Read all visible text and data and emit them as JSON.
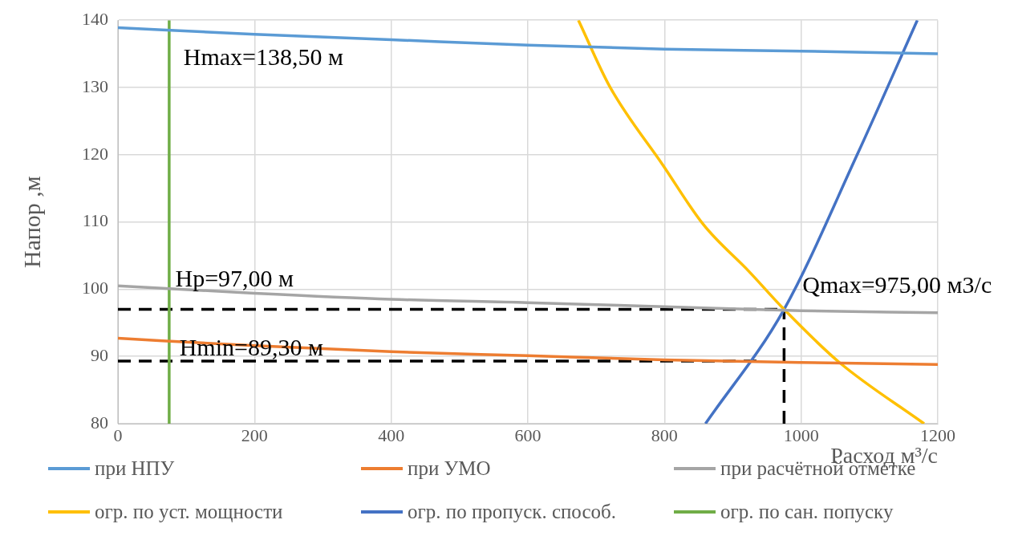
{
  "chart_data": {
    "type": "line",
    "xlabel": "Расход м³/с",
    "ylabel": "Напор ,м",
    "xlim": [
      0,
      1200
    ],
    "xticks": [
      0,
      200,
      400,
      600,
      800,
      1000,
      1200
    ],
    "ylim": [
      80,
      140
    ],
    "yticks": [
      80,
      90,
      100,
      110,
      120,
      130,
      140
    ],
    "grid": true,
    "legend": "bottom",
    "marker": "none",
    "series": [
      {
        "name": "при НПУ",
        "color": "#5b9bd5",
        "x": [
          0,
          200,
          400,
          600,
          800,
          1000,
          1200
        ],
        "values": [
          138.9,
          137.9,
          137.1,
          136.3,
          135.7,
          135.4,
          135.0
        ]
      },
      {
        "name": "при УМО",
        "color": "#ed7d31",
        "x": [
          0,
          200,
          400,
          600,
          800,
          1000,
          1200
        ],
        "values": [
          92.7,
          91.6,
          90.7,
          90.1,
          89.5,
          89.1,
          88.8
        ]
      },
      {
        "name": "при расчётной отметке",
        "color": "#a5a5a5",
        "x": [
          0,
          200,
          400,
          600,
          800,
          1000,
          1200
        ],
        "values": [
          100.5,
          99.4,
          98.5,
          98.0,
          97.4,
          96.8,
          96.5
        ]
      },
      {
        "name": "огр. по уст. мощности",
        "color": "#ffc000",
        "x": [
          674,
          720,
          798,
          857,
          924,
          975,
          1056,
          1180
        ],
        "values": [
          140,
          130.1,
          118.4,
          109.6,
          102.6,
          97.0,
          89.1,
          80
        ]
      },
      {
        "name": "огр. по пропуск. способ.",
        "color": "#4472c4",
        "x": [
          860,
          975,
          1082,
          1170
        ],
        "values": [
          80,
          97,
          120,
          140
        ]
      },
      {
        "name": "огр. по сан. попуску",
        "color": "#70ad47",
        "x": [
          75,
          75
        ],
        "values": [
          80,
          140
        ]
      },
      {
        "color": "#000000",
        "line_style": "dashed",
        "x": [
          0,
          975
        ],
        "values": [
          97,
          97
        ]
      },
      {
        "color": "#000000",
        "line_style": "dashed",
        "x": [
          0,
          937
        ],
        "values": [
          89.3,
          89.3
        ]
      },
      {
        "color": "#000000",
        "line_style": "dashed",
        "x": [
          975,
          975
        ],
        "values": [
          80,
          97
        ]
      }
    ],
    "annotations": [
      "Hmax=138,50 м",
      "Hp=97,00 м",
      "Hmin=89,30 м",
      "Qmax=975,00 м3/с"
    ]
  }
}
